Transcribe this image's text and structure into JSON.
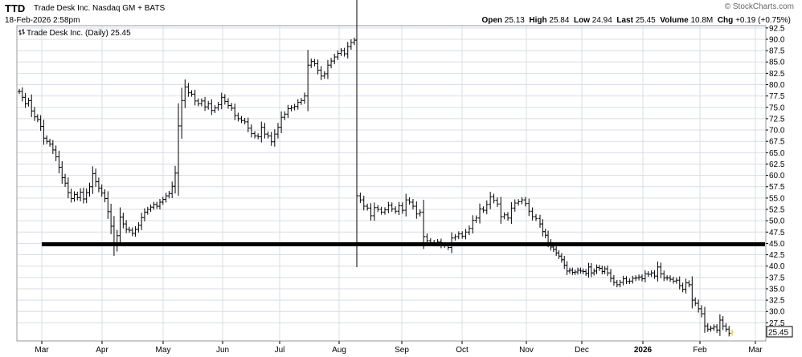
{
  "header": {
    "symbol": "TTD",
    "company": "Trade Desk Inc.  Nasdaq GM + BATS",
    "datetime": "18-Feb-2026 2:58pm",
    "watermark": "© StockCharts.com",
    "open_label": "Open",
    "open": "25.13",
    "high_label": "High",
    "high": "25.84",
    "low_label": "Low",
    "low": "24.94",
    "last_label": "Last",
    "last": "25.45",
    "volume_label": "Volume",
    "volume": "10.8M",
    "chg_label": "Chg",
    "chg": "+0.19 (+0.75%)"
  },
  "legend": "Trade Desk Inc. (Daily) 25.45",
  "price_tag": "25.45",
  "colors": {
    "bars": "#000000",
    "last_bar": "#e6c800",
    "support_line": "#000000",
    "grid": "#d8dde6",
    "border": "#999999"
  },
  "chart_data": {
    "type": "ohlc",
    "title": "Trade Desk Inc. (Daily) 25.45",
    "ylim": [
      23.5,
      93.0
    ],
    "y_ticks": [
      27.5,
      30.0,
      32.5,
      35.0,
      37.5,
      40.0,
      42.5,
      45.0,
      47.5,
      50.0,
      52.5,
      55.0,
      57.5,
      60.0,
      62.5,
      65.0,
      67.5,
      70.0,
      72.5,
      75.0,
      77.5,
      80.0,
      82.5,
      85.0,
      87.5,
      90.0,
      92.5
    ],
    "x_months": [
      "Mar",
      "Apr",
      "May",
      "Jun",
      "Jul",
      "Aug",
      "Sep",
      "Oct",
      "Nov",
      "Dec",
      "2026",
      "Feb",
      "Mar"
    ],
    "support_level": 44.8,
    "series_close": [
      78.5,
      77.2,
      75.8,
      76.5,
      74.2,
      72.9,
      72.3,
      70.8,
      68.2,
      67.5,
      66.9,
      65.6,
      64.1,
      61.8,
      59.5,
      58.3,
      56.2,
      54.9,
      55.8,
      55.1,
      56.3,
      54.8,
      56.2,
      57.5,
      60.4,
      58.6,
      57.2,
      56.1,
      54.9,
      52.0,
      48.8,
      44.5,
      46.7,
      50.8,
      49.3,
      48.1,
      47.9,
      47.2,
      48.1,
      49.0,
      50.7,
      51.9,
      52.5,
      53.0,
      53.6,
      53.2,
      54.1,
      54.7,
      55.5,
      56.0,
      57.6,
      60.5,
      70.9,
      76.5,
      79.5,
      78.2,
      77.9,
      76.4,
      75.8,
      76.4,
      75.1,
      75.8,
      74.3,
      74.9,
      75.6,
      77.2,
      76.3,
      75.4,
      74.8,
      73.2,
      72.5,
      72.1,
      71.8,
      70.4,
      69.2,
      68.7,
      68.5,
      70.6,
      69.1,
      68.7,
      67.4,
      69.1,
      70.6,
      72.8,
      73.5,
      74.7,
      74.9,
      75.2,
      76.1,
      76.5,
      77.5,
      84.3,
      85.1,
      84.6,
      83.2,
      81.9,
      82.4,
      84.3,
      85.2,
      86.1,
      86.9,
      87.5,
      86.8,
      88.4,
      89.3,
      89.8,
      55.5,
      54.6,
      53.2,
      52.8,
      51.1,
      52.9,
      52.5,
      51.9,
      52.4,
      53.4,
      52.6,
      52.1,
      53.3,
      52.3,
      54.6,
      54.1,
      53.2,
      51.5,
      51.9,
      46.5,
      45.6,
      45.2,
      45.1,
      45.4,
      44.6,
      44.7,
      44.1,
      46.2,
      46.5,
      47.1,
      46.6,
      47.5,
      48.3,
      50.1,
      50.6,
      52.6,
      52.3,
      53.6,
      55.3,
      54.5,
      53.7,
      50.9,
      51.3,
      50.6,
      52.8,
      53.9,
      54.2,
      54.6,
      53.8,
      52.1,
      50.9,
      50.5,
      49.3,
      47.6,
      46.8,
      45.2,
      44.2,
      43.7,
      42.9,
      42.2,
      41.4,
      40.2,
      38.9,
      39.1,
      38.6,
      38.7,
      39.1,
      38.9,
      38.8,
      38.4,
      39.8,
      38.5,
      38.9,
      39.7,
      39.5,
      38.8,
      39.4,
      38.5,
      37.3,
      36.4,
      35.9,
      36.4,
      37.2,
      36.6,
      36.7,
      37.3,
      37.4,
      37.6,
      37.2,
      38.3,
      38.2,
      38.5,
      37.8,
      39.8,
      38.3,
      37.4,
      37.4,
      37.1,
      36.7,
      36.9,
      35.7,
      34.9,
      36.3,
      35.9,
      32.5,
      31.8,
      30.6,
      29.5,
      26.8,
      26.1,
      26.3,
      26.6,
      25.9,
      28.1,
      26.8,
      26.1,
      25.2,
      25.45
    ]
  }
}
